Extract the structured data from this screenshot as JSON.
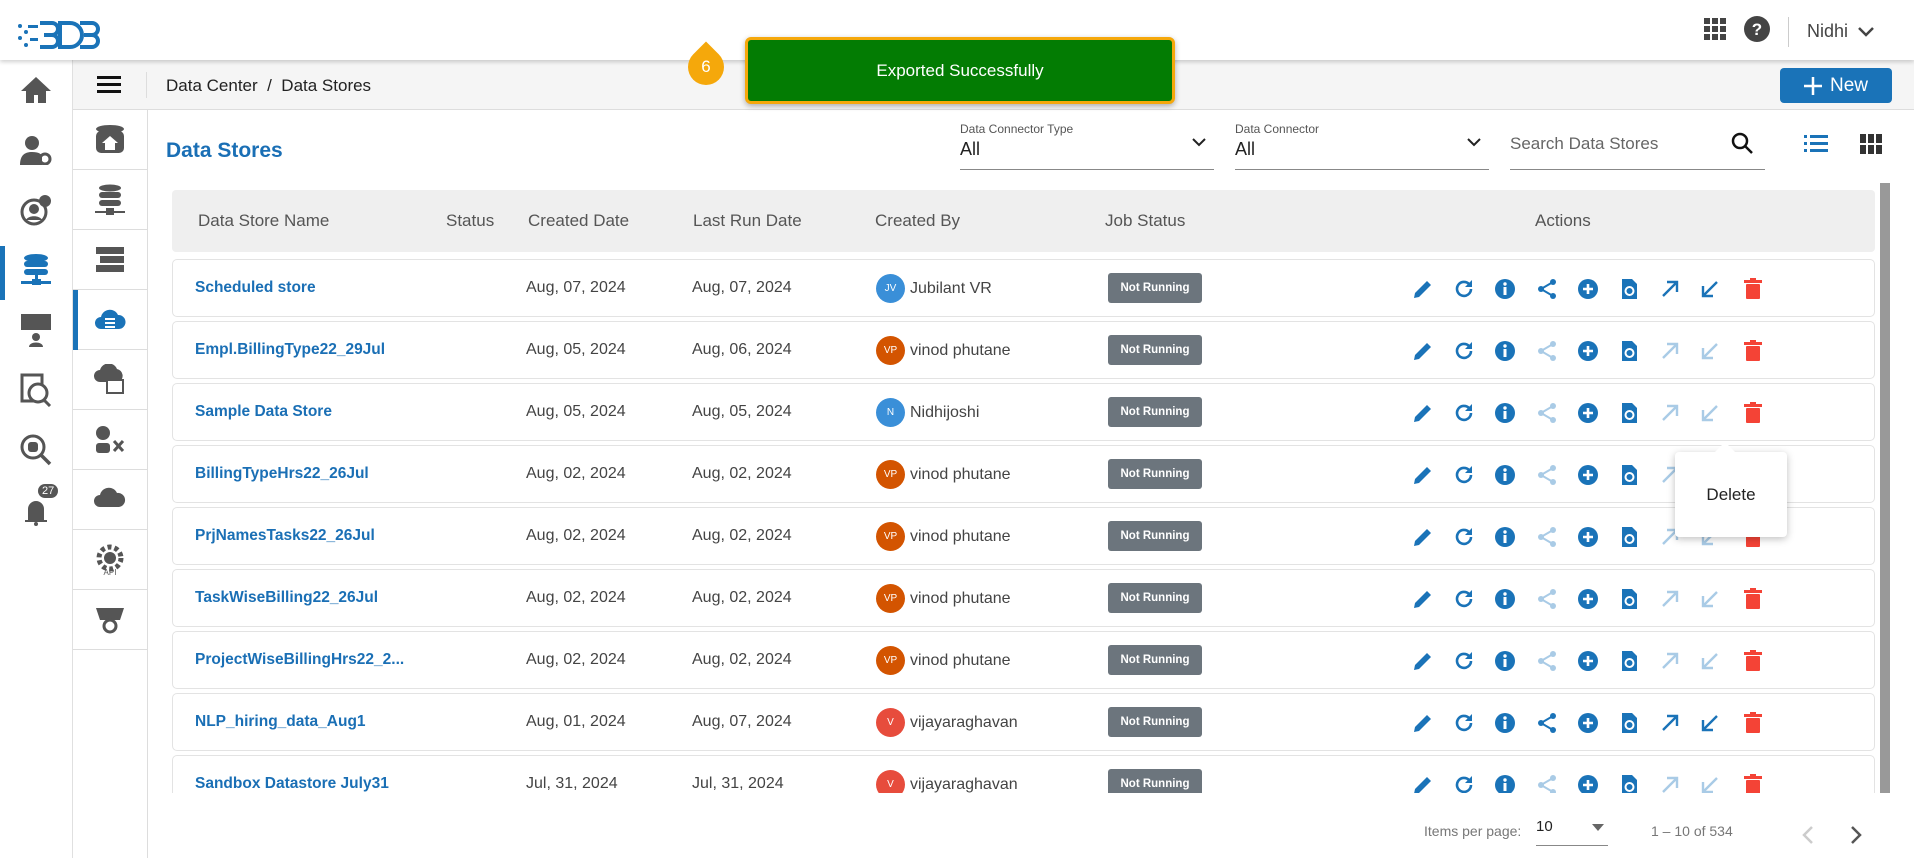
{
  "header": {
    "user": "Nidhi",
    "logo_text": "BDB"
  },
  "breadcrumb": {
    "text": "Data Center  /  Data Stores",
    "items": [
      "Data Center",
      "Data Stores"
    ]
  },
  "toolbar": {
    "new_label": "New"
  },
  "toast": {
    "message": "Exported Successfully",
    "step": "6",
    "color": "#037c03"
  },
  "rail": {
    "notification_count": "27",
    "items": [
      "home",
      "user-settings",
      "user-info",
      "data-center",
      "insights",
      "data-catalog",
      "data-search",
      "notifications"
    ],
    "active": "data-center"
  },
  "subnav": {
    "items": [
      "data-home",
      "data-connectors",
      "data-sets",
      "data-stores",
      "data-as-api",
      "data-sandbox",
      "data-preparation",
      "api",
      "feature-store"
    ],
    "active": "data-stores"
  },
  "page": {
    "title": "Data Stores"
  },
  "filters": {
    "connector_type_label": "Data Connector Type",
    "connector_type_value": "All",
    "connector_label": "Data Connector",
    "connector_value": "All",
    "search_placeholder": "Search Data Stores"
  },
  "table": {
    "headers": [
      "Data Store Name",
      "Status",
      "Created Date",
      "Last Run Date",
      "Created By",
      "Job Status",
      "Actions"
    ],
    "rows": [
      {
        "name": "Scheduled store",
        "created": "Aug, 07, 2024",
        "last_run": "Aug, 07, 2024",
        "initials": "JV",
        "by": "Jubilant VR",
        "avatar": "#3a8fd8",
        "job": "Not Running",
        "share": true,
        "export": true,
        "import": true
      },
      {
        "name": "Empl.BillingType22_29Jul",
        "created": "Aug, 05, 2024",
        "last_run": "Aug, 06, 2024",
        "initials": "VP",
        "by": "vinod phutane",
        "avatar": "#d35400",
        "job": "Not Running",
        "share": false,
        "export": false,
        "import": false
      },
      {
        "name": "Sample Data Store",
        "created": "Aug, 05, 2024",
        "last_run": "Aug, 05, 2024",
        "initials": "N",
        "by": "Nidhijoshi",
        "avatar": "#3a8fd8",
        "job": "Not Running",
        "share": false,
        "export": false,
        "import": false
      },
      {
        "name": "BillingTypeHrs22_26Jul",
        "created": "Aug, 02, 2024",
        "last_run": "Aug, 02, 2024",
        "initials": "VP",
        "by": "vinod phutane",
        "avatar": "#d35400",
        "job": "Not Running",
        "share": false,
        "export": false,
        "import": false
      },
      {
        "name": "PrjNamesTasks22_26Jul",
        "created": "Aug, 02, 2024",
        "last_run": "Aug, 02, 2024",
        "initials": "VP",
        "by": "vinod phutane",
        "avatar": "#d35400",
        "job": "Not Running",
        "share": false,
        "export": false,
        "import": false
      },
      {
        "name": "TaskWiseBilling22_26Jul",
        "created": "Aug, 02, 2024",
        "last_run": "Aug, 02, 2024",
        "initials": "VP",
        "by": "vinod phutane",
        "avatar": "#d35400",
        "job": "Not Running",
        "share": false,
        "export": false,
        "import": false
      },
      {
        "name": "ProjectWiseBillingHrs22_2...",
        "created": "Aug, 02, 2024",
        "last_run": "Aug, 02, 2024",
        "initials": "VP",
        "by": "vinod phutane",
        "avatar": "#d35400",
        "job": "Not Running",
        "share": false,
        "export": false,
        "import": false
      },
      {
        "name": "NLP_hiring_data_Aug1",
        "created": "Aug, 01, 2024",
        "last_run": "Aug, 07, 2024",
        "initials": "V",
        "by": "vijayaraghavan",
        "avatar": "#e74c3c",
        "job": "Not Running",
        "share": true,
        "export": true,
        "import": true
      },
      {
        "name": "Sandbox Datastore July31",
        "created": "Jul, 31, 2024",
        "last_run": "Jul, 31, 2024",
        "initials": "V",
        "by": "vijayaraghavan",
        "avatar": "#e74c3c",
        "job": "Not Running",
        "share": false,
        "export": false,
        "import": false
      }
    ]
  },
  "popover": {
    "label": "Delete"
  },
  "pagination": {
    "items_label": "Items per page:",
    "per_page": "10",
    "range": "1 – 10 of 534"
  },
  "colors": {
    "primary": "#1a73b8",
    "delete": "#f44336",
    "job_badge": "#6c757d"
  }
}
